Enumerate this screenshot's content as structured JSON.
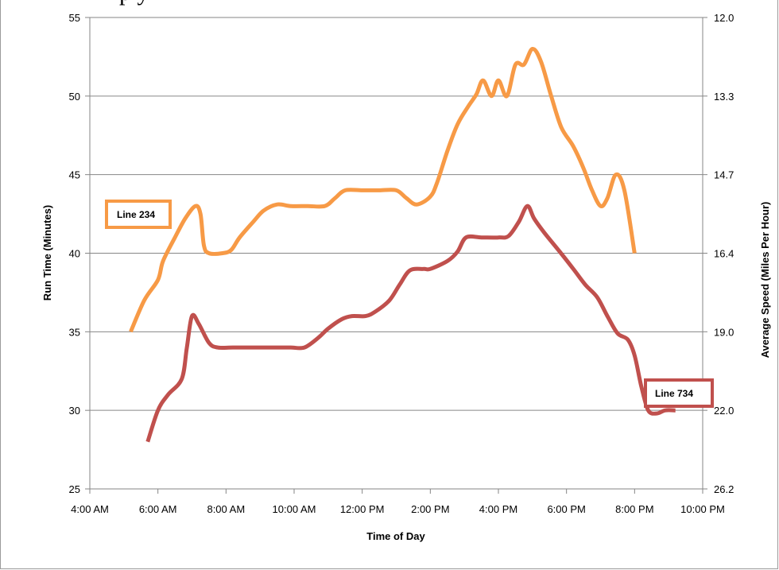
{
  "title_fragment": "p y",
  "chart_data": {
    "type": "line",
    "xlabel": "Time of Day",
    "ylabel": "Run Time (Minutes)",
    "y2label": "Average Speed (Miles Per Hour)",
    "xlim": [
      4,
      22
    ],
    "ylim": [
      25,
      55
    ],
    "x_ticks": [
      4,
      6,
      8,
      10,
      12,
      14,
      16,
      18,
      20,
      22
    ],
    "x_tick_labels": [
      "4:00 AM",
      "6:00 AM",
      "8:00 AM",
      "10:00 AM",
      "12:00 PM",
      "2:00 PM",
      "4:00 PM",
      "6:00 PM",
      "8:00 PM",
      "10:00 PM"
    ],
    "y_ticks": [
      25,
      30,
      35,
      40,
      45,
      50,
      55
    ],
    "y_tick_labels": [
      "25",
      "30",
      "35",
      "40",
      "45",
      "50",
      "55"
    ],
    "y2_tick_labels": [
      "26.2",
      "22.0",
      "19.0",
      "16.4",
      "14.7",
      "13.3",
      "12.0"
    ],
    "grid": true,
    "series": [
      {
        "name": "Line 234",
        "color": "#F79A46",
        "points": [
          [
            5.2,
            35
          ],
          [
            5.6,
            37
          ],
          [
            6.0,
            38.3
          ],
          [
            6.15,
            39.5
          ],
          [
            6.5,
            41
          ],
          [
            6.8,
            42.2
          ],
          [
            7.1,
            43
          ],
          [
            7.25,
            42.5
          ],
          [
            7.35,
            40.5
          ],
          [
            7.5,
            40
          ],
          [
            7.9,
            40
          ],
          [
            8.15,
            40.2
          ],
          [
            8.4,
            41
          ],
          [
            8.8,
            42
          ],
          [
            9.1,
            42.7
          ],
          [
            9.5,
            43.1
          ],
          [
            9.9,
            43
          ],
          [
            10.4,
            43
          ],
          [
            10.9,
            43
          ],
          [
            11.2,
            43.5
          ],
          [
            11.5,
            44
          ],
          [
            12.0,
            44
          ],
          [
            12.5,
            44
          ],
          [
            13.0,
            44
          ],
          [
            13.3,
            43.5
          ],
          [
            13.6,
            43.1
          ],
          [
            14.0,
            43.6
          ],
          [
            14.2,
            44.5
          ],
          [
            14.5,
            46.5
          ],
          [
            14.8,
            48.2
          ],
          [
            15.1,
            49.3
          ],
          [
            15.35,
            50.1
          ],
          [
            15.55,
            51
          ],
          [
            15.8,
            50
          ],
          [
            16.0,
            51
          ],
          [
            16.25,
            50
          ],
          [
            16.5,
            52
          ],
          [
            16.75,
            52
          ],
          [
            17.0,
            53
          ],
          [
            17.25,
            52.2
          ],
          [
            17.55,
            50
          ],
          [
            17.85,
            48
          ],
          [
            18.2,
            46.8
          ],
          [
            18.5,
            45.4
          ],
          [
            18.75,
            44
          ],
          [
            19.0,
            43
          ],
          [
            19.2,
            43.5
          ],
          [
            19.45,
            45
          ],
          [
            19.7,
            44
          ],
          [
            20.0,
            40
          ]
        ]
      },
      {
        "name": "Line 734",
        "color": "#C0504D",
        "points": [
          [
            5.7,
            28
          ],
          [
            6.0,
            30
          ],
          [
            6.3,
            31
          ],
          [
            6.7,
            32
          ],
          [
            6.85,
            34
          ],
          [
            7.0,
            36
          ],
          [
            7.2,
            35.5
          ],
          [
            7.5,
            34.3
          ],
          [
            7.75,
            34
          ],
          [
            8.2,
            34
          ],
          [
            8.8,
            34
          ],
          [
            9.4,
            34
          ],
          [
            9.9,
            34
          ],
          [
            10.3,
            34
          ],
          [
            10.7,
            34.6
          ],
          [
            11.0,
            35.2
          ],
          [
            11.4,
            35.8
          ],
          [
            11.7,
            36
          ],
          [
            12.1,
            36
          ],
          [
            12.4,
            36.3
          ],
          [
            12.8,
            37
          ],
          [
            13.1,
            38
          ],
          [
            13.4,
            38.9
          ],
          [
            13.8,
            39
          ],
          [
            14.0,
            39
          ],
          [
            14.5,
            39.5
          ],
          [
            14.8,
            40.1
          ],
          [
            15.05,
            41
          ],
          [
            15.5,
            41
          ],
          [
            16.0,
            41
          ],
          [
            16.3,
            41.1
          ],
          [
            16.6,
            42
          ],
          [
            16.85,
            43
          ],
          [
            17.05,
            42.2
          ],
          [
            17.35,
            41.3
          ],
          [
            17.8,
            40.1
          ],
          [
            18.2,
            39
          ],
          [
            18.55,
            38
          ],
          [
            18.9,
            37.2
          ],
          [
            19.2,
            36
          ],
          [
            19.5,
            34.9
          ],
          [
            19.8,
            34.5
          ],
          [
            20.0,
            33.5
          ],
          [
            20.2,
            31.5
          ],
          [
            20.4,
            30
          ],
          [
            20.65,
            29.8
          ],
          [
            20.9,
            30
          ],
          [
            21.2,
            30
          ]
        ]
      }
    ],
    "annotations": [
      {
        "text": "Line 234",
        "series": 0
      },
      {
        "text": "Line 734",
        "series": 1
      }
    ]
  }
}
